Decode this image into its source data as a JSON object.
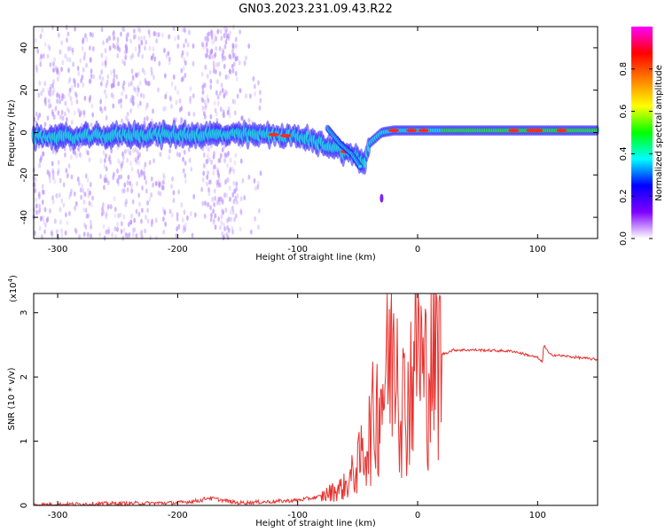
{
  "title": "GN03.2023.231.09.43.R22",
  "colors": {
    "snr_line": "#e8322f",
    "track_core": "#ff2a1a",
    "track_mid": "#28e1e0",
    "track_low": "#2a1cff",
    "noise": "#b68cff",
    "axis": "#000000"
  },
  "colorbar": {
    "label": "Normalized spectral amplitude",
    "ticks": [
      "0.0",
      "0.2",
      "0.4",
      "0.6",
      "0.8"
    ],
    "tick_values": [
      0.0,
      0.2,
      0.4,
      0.6,
      0.8
    ],
    "range": [
      0.0,
      1.0
    ],
    "colormap": [
      "#ffffff",
      "#7f00ff",
      "#0000ff",
      "#00ffff",
      "#00ff00",
      "#ffff00",
      "#ff7f00",
      "#ff0000",
      "#ff00ff"
    ]
  },
  "chart_data": [
    {
      "type": "heatmap",
      "title": "GN03.2023.231.09.43.R22",
      "xlabel": "Height of straight line (km)",
      "ylabel": "Frequency (Hz)",
      "xlim": [
        -320,
        150
      ],
      "ylim": [
        -50,
        50
      ],
      "xticks": [
        -300,
        -200,
        -100,
        0,
        100
      ],
      "yticks": [
        -40,
        -20,
        0,
        20,
        40
      ],
      "tick_labels_x": [
        "-300",
        "-200",
        "-100",
        "0",
        "100"
      ],
      "tick_labels_y": [
        "-40",
        "-20",
        "0",
        "20",
        "40"
      ],
      "series": [
        {
          "x": [
            -320,
            -280,
            -240,
            -200,
            -160,
            -120,
            -100,
            -80,
            -70,
            -60,
            -50,
            -45,
            -40,
            -30,
            -20,
            -10,
            0,
            20,
            50,
            80,
            100,
            120,
            150
          ],
          "y": [
            -2,
            -2,
            -1,
            -1,
            -1,
            -1,
            -2,
            -5,
            -7,
            -9,
            -12,
            -15,
            -5,
            0,
            1,
            1,
            1,
            1,
            1,
            1,
            1,
            1,
            1
          ]
        }
      ],
      "secondary_track": {
        "x": [
          -75,
          -65,
          -55,
          -48
        ],
        "y": [
          2,
          -5,
          -10,
          -16
        ]
      },
      "isolated_point": {
        "x": -30,
        "y": -31
      }
    },
    {
      "type": "line",
      "xlabel": "Height of straight line (km)",
      "ylabel": "SNR (10 * v/v)",
      "scale_label": "(x10",
      "scale_exponent": "4",
      "scale_close": ")",
      "xlim": [
        -320,
        150
      ],
      "ylim": [
        0,
        3.3
      ],
      "xticks": [
        -300,
        -200,
        -100,
        0,
        100
      ],
      "yticks": [
        0,
        1,
        2,
        3
      ],
      "tick_labels_x": [
        "-300",
        "-200",
        "-100",
        "0",
        "100"
      ],
      "tick_labels_y": [
        "0",
        "1",
        "2",
        "3"
      ],
      "series": [
        {
          "x": [
            -320,
            -250,
            -200,
            -180,
            -175,
            -150,
            -120,
            -100,
            -80,
            -60,
            -50,
            -40,
            -30,
            -20,
            -18,
            -15,
            -10,
            -5,
            0,
            5,
            10,
            20,
            30,
            50,
            80,
            100,
            104,
            105,
            110,
            150
          ],
          "y": [
            0.01,
            0.03,
            0.04,
            0.08,
            0.12,
            0.04,
            0.06,
            0.08,
            0.14,
            0.3,
            0.6,
            1.1,
            1.8,
            2.6,
            3.2,
            1.8,
            1.5,
            2.0,
            2.9,
            1.9,
            2.2,
            2.35,
            2.42,
            2.42,
            2.4,
            2.3,
            2.22,
            2.5,
            2.35,
            2.27
          ]
        }
      ]
    }
  ]
}
